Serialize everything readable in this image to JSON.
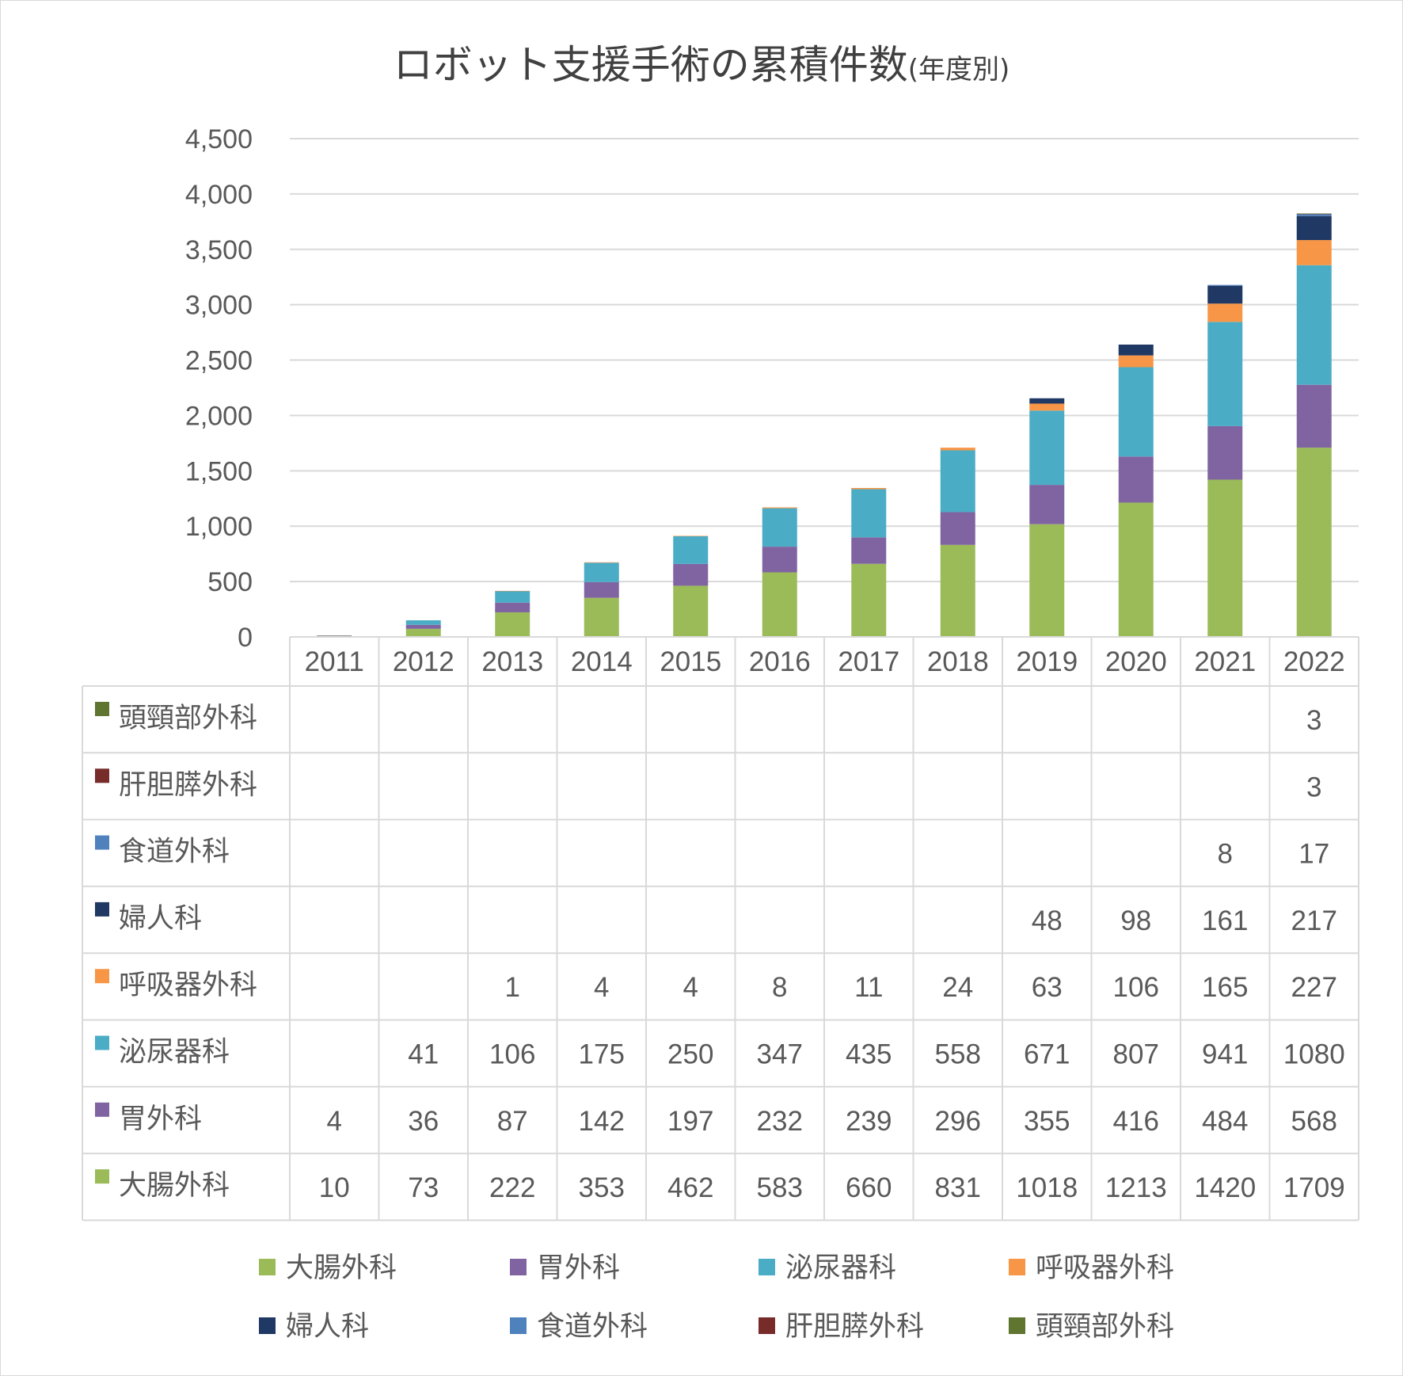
{
  "chart_data": {
    "type": "bar",
    "stacked": true,
    "title": "ロボット支援手術の累積件数",
    "subtitle": "(年度別)",
    "categories": [
      "2011",
      "2012",
      "2013",
      "2014",
      "2015",
      "2016",
      "2017",
      "2018",
      "2019",
      "2020",
      "2021",
      "2022"
    ],
    "ylim": [
      0,
      4500
    ],
    "yticks": [
      0,
      500,
      1000,
      1500,
      2000,
      2500,
      3000,
      3500,
      4000,
      4500
    ],
    "ytick_labels": [
      "0",
      "500",
      "1,000",
      "1,500",
      "2,000",
      "2,500",
      "3,000",
      "3,500",
      "4,000",
      "4,500"
    ],
    "grid": true,
    "data_table": true,
    "legend_position": "bottom",
    "series": [
      {
        "name": "大腸外科",
        "color": "#9bbb59",
        "values": [
          10,
          73,
          222,
          353,
          462,
          583,
          660,
          831,
          1018,
          1213,
          1420,
          1709
        ]
      },
      {
        "name": "胃外科",
        "color": "#8064a2",
        "values": [
          4,
          36,
          87,
          142,
          197,
          232,
          239,
          296,
          355,
          416,
          484,
          568
        ]
      },
      {
        "name": "泌尿器科",
        "color": "#4bacc6",
        "values": [
          null,
          41,
          106,
          175,
          250,
          347,
          435,
          558,
          671,
          807,
          941,
          1080
        ]
      },
      {
        "name": "呼吸器外科",
        "color": "#f79646",
        "values": [
          null,
          null,
          1,
          4,
          4,
          8,
          11,
          24,
          63,
          106,
          165,
          227
        ]
      },
      {
        "name": "婦人科",
        "color": "#1f3864",
        "values": [
          null,
          null,
          null,
          null,
          null,
          null,
          null,
          null,
          48,
          98,
          161,
          217
        ]
      },
      {
        "name": "食道外科",
        "color": "#4f81bd",
        "values": [
          null,
          null,
          null,
          null,
          null,
          null,
          null,
          null,
          null,
          null,
          8,
          17
        ]
      },
      {
        "name": "肝胆膵外科",
        "color": "#772c2a",
        "values": [
          null,
          null,
          null,
          null,
          null,
          null,
          null,
          null,
          null,
          null,
          null,
          3
        ]
      },
      {
        "name": "頭頸部外科",
        "color": "#5f7530",
        "values": [
          null,
          null,
          null,
          null,
          null,
          null,
          null,
          null,
          null,
          null,
          null,
          3
        ]
      }
    ]
  }
}
